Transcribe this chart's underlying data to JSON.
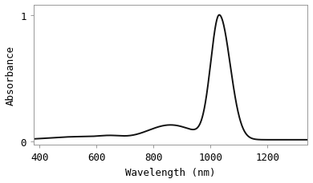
{
  "title": "",
  "xlabel": "Wavelength (nm)",
  "ylabel": "Absorbance",
  "xlim": [
    380,
    1340
  ],
  "ylim": [
    -0.03,
    1.08
  ],
  "xticks": [
    400,
    600,
    800,
    1000,
    1200
  ],
  "yticks": [
    0,
    1
  ],
  "ytick_labels": [
    "0",
    "1"
  ],
  "line_color": "#111111",
  "line_width": 1.4,
  "bg_color": "#ffffff",
  "peak_nm": 1031,
  "font_family": "monospace"
}
